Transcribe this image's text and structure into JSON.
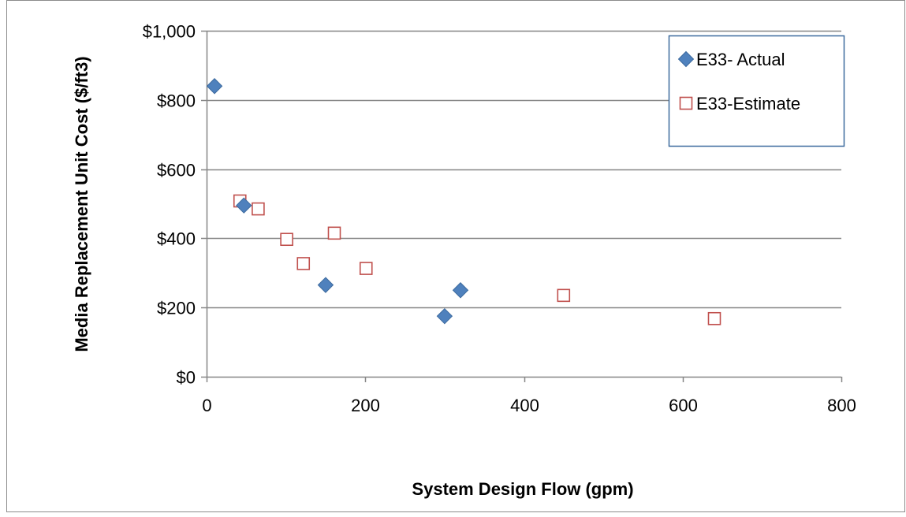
{
  "chart_data": {
    "type": "scatter",
    "title": "",
    "xlabel": "System Design Flow (gpm)",
    "ylabel": "Media Replacement Unit Cost ($/ft3)",
    "xlim": [
      0,
      800
    ],
    "ylim": [
      0,
      1000
    ],
    "x_ticks": [
      {
        "value": 0,
        "label": "0"
      },
      {
        "value": 200,
        "label": "200"
      },
      {
        "value": 400,
        "label": "400"
      },
      {
        "value": 600,
        "label": "600"
      },
      {
        "value": 800,
        "label": "800"
      }
    ],
    "y_ticks": [
      {
        "value": 0,
        "label": "$0"
      },
      {
        "value": 200,
        "label": "$200"
      },
      {
        "value": 400,
        "label": "$400"
      },
      {
        "value": 600,
        "label": "$600"
      },
      {
        "value": 800,
        "label": "$800"
      },
      {
        "value": 1000,
        "label": "$1,000"
      }
    ],
    "grid": "horizontal",
    "legend_position": "top-right",
    "series": [
      {
        "name": "E33- Actual",
        "marker": "diamond",
        "color": "#4F81BD",
        "edge_color": "#3C6A9E",
        "points": [
          {
            "x": 10,
            "y": 840
          },
          {
            "x": 47,
            "y": 495
          },
          {
            "x": 150,
            "y": 265
          },
          {
            "x": 300,
            "y": 175
          },
          {
            "x": 320,
            "y": 250
          }
        ]
      },
      {
        "name": "E33-Estimate",
        "marker": "square-open",
        "color": "#C0504D",
        "points": [
          {
            "x": 42,
            "y": 508
          },
          {
            "x": 65,
            "y": 485
          },
          {
            "x": 101,
            "y": 397
          },
          {
            "x": 122,
            "y": 327
          },
          {
            "x": 161,
            "y": 415
          },
          {
            "x": 201,
            "y": 313
          },
          {
            "x": 450,
            "y": 235
          },
          {
            "x": 640,
            "y": 168
          }
        ]
      }
    ]
  }
}
